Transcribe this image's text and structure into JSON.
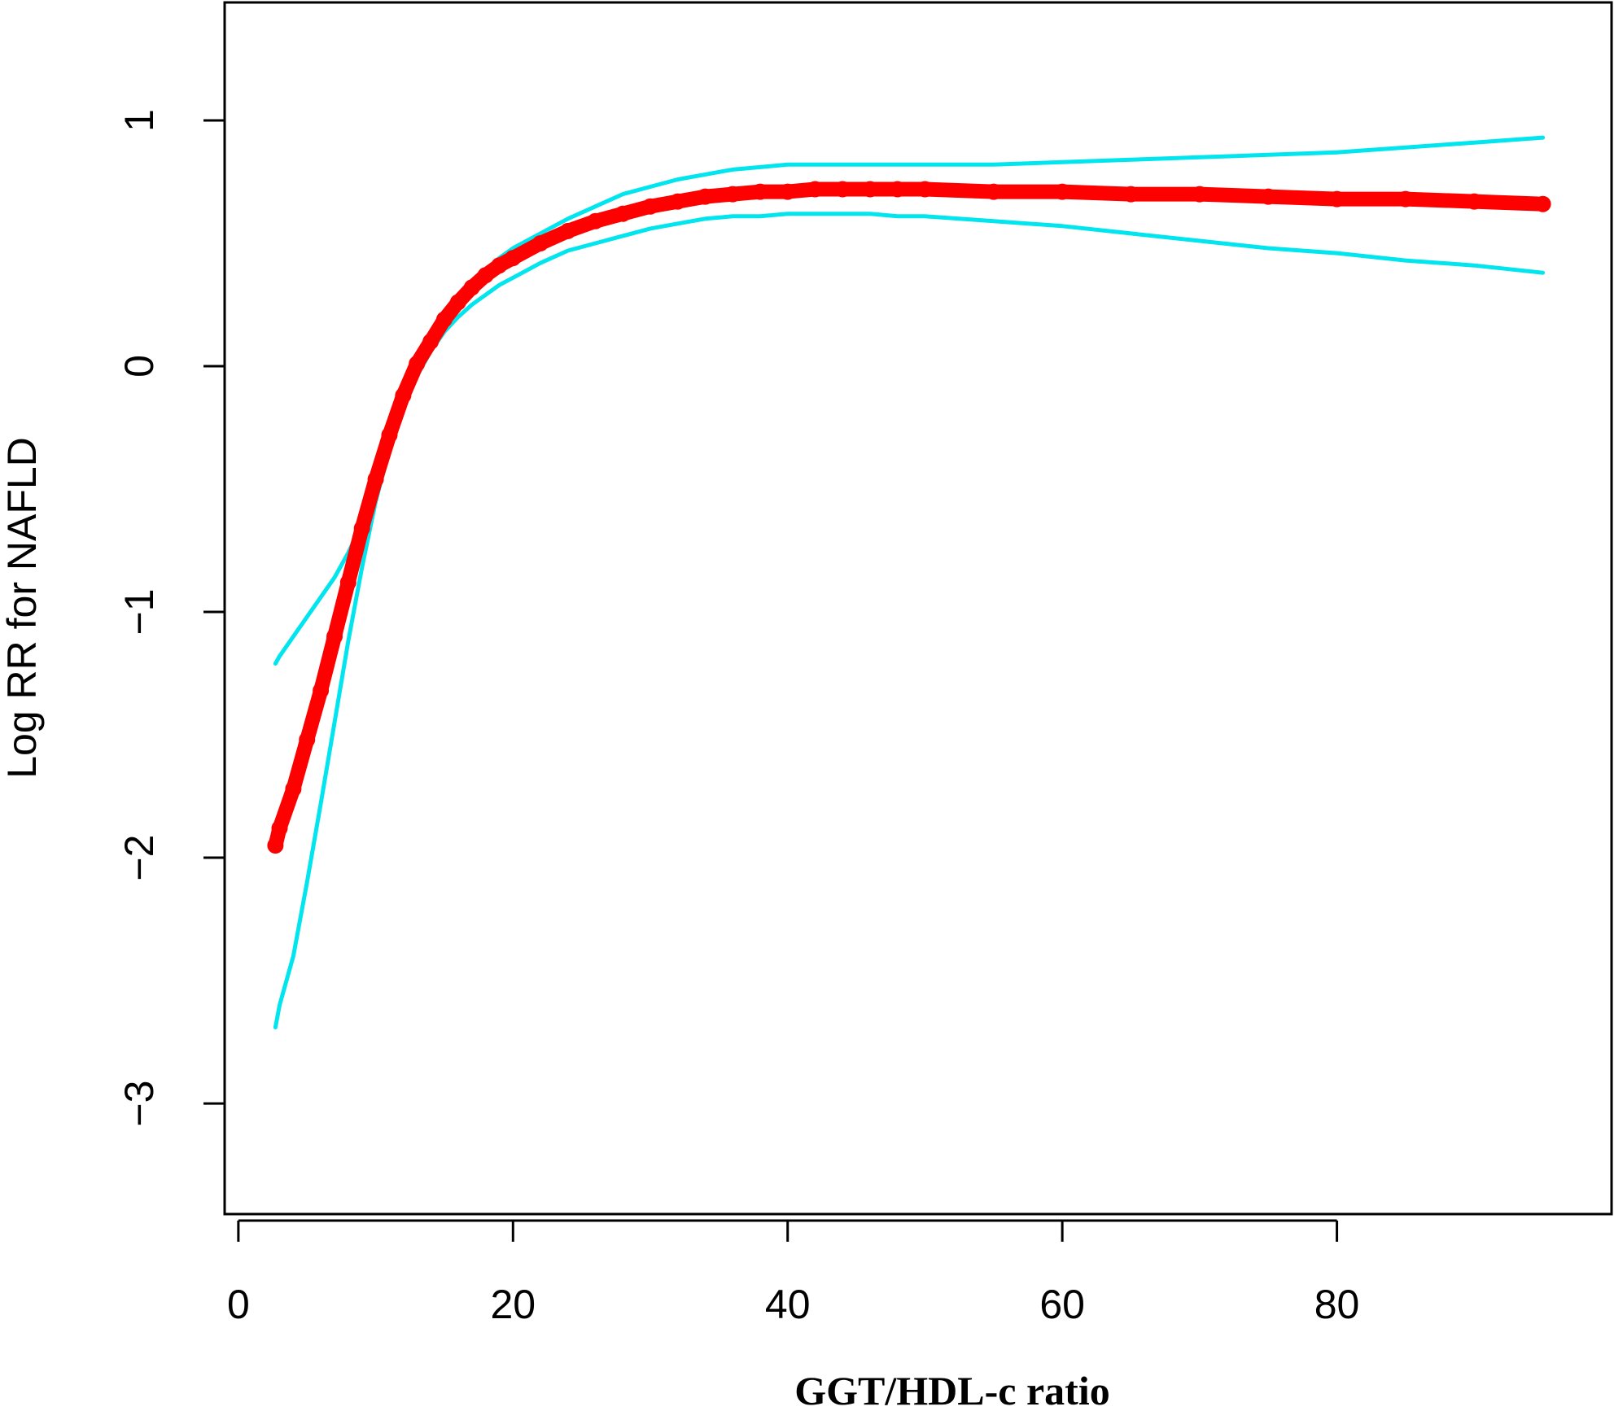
{
  "chart_data": {
    "type": "line",
    "title": "",
    "xlabel": "GGT/HDL-c ratio",
    "ylabel": "Log RR for NAFLD",
    "xlim": [
      -1,
      100
    ],
    "ylim": [
      -3.45,
      1.48
    ],
    "xticks": [
      0,
      20,
      40,
      60,
      80
    ],
    "yticks": [
      -3,
      -2,
      -1,
      0,
      1
    ],
    "grid": false,
    "legend": "none",
    "colors": {
      "estimate": "#ff0000",
      "ci": "#00e5ee",
      "axis": "#000000"
    },
    "series": [
      {
        "role": "estimate",
        "style": "thick-points",
        "x": [
          2.7,
          3,
          4,
          5,
          6,
          7,
          8,
          9,
          10,
          11,
          12,
          13,
          14,
          15,
          16,
          17,
          18,
          19,
          20,
          22,
          24,
          26,
          28,
          30,
          32,
          34,
          36,
          38,
          40,
          42,
          44,
          46,
          48,
          50,
          55,
          60,
          65,
          70,
          75,
          80,
          85,
          90,
          95
        ],
        "y": [
          -1.95,
          -1.88,
          -1.72,
          -1.52,
          -1.32,
          -1.1,
          -0.88,
          -0.66,
          -0.46,
          -0.28,
          -0.12,
          0.01,
          0.1,
          0.19,
          0.26,
          0.32,
          0.37,
          0.41,
          0.44,
          0.5,
          0.55,
          0.59,
          0.62,
          0.65,
          0.67,
          0.69,
          0.7,
          0.71,
          0.71,
          0.72,
          0.72,
          0.72,
          0.72,
          0.72,
          0.71,
          0.71,
          0.7,
          0.7,
          0.69,
          0.68,
          0.68,
          0.67,
          0.66
        ]
      },
      {
        "role": "ci-upper",
        "style": "line",
        "x": [
          2.7,
          3,
          4,
          5,
          6,
          7,
          8,
          9,
          10,
          11,
          12,
          13,
          14,
          15,
          16,
          17,
          18,
          19,
          20,
          22,
          24,
          26,
          28,
          30,
          32,
          34,
          36,
          38,
          40,
          42,
          44,
          46,
          48,
          50,
          55,
          60,
          65,
          70,
          75,
          80,
          85,
          90,
          95
        ],
        "y": [
          -1.21,
          -1.18,
          -1.1,
          -1.02,
          -0.94,
          -0.86,
          -0.76,
          -0.64,
          -0.48,
          -0.3,
          -0.14,
          -0.01,
          0.09,
          0.18,
          0.26,
          0.33,
          0.39,
          0.44,
          0.48,
          0.54,
          0.6,
          0.65,
          0.7,
          0.73,
          0.76,
          0.78,
          0.8,
          0.81,
          0.82,
          0.82,
          0.82,
          0.82,
          0.82,
          0.82,
          0.82,
          0.83,
          0.84,
          0.85,
          0.86,
          0.87,
          0.89,
          0.91,
          0.93
        ]
      },
      {
        "role": "ci-lower",
        "style": "line",
        "x": [
          2.7,
          3,
          4,
          5,
          6,
          7,
          8,
          9,
          10,
          11,
          12,
          13,
          14,
          15,
          16,
          17,
          18,
          19,
          20,
          22,
          24,
          26,
          28,
          30,
          32,
          34,
          36,
          38,
          40,
          42,
          44,
          46,
          48,
          50,
          55,
          60,
          65,
          70,
          75,
          80,
          85,
          90,
          95
        ],
        "y": [
          -2.69,
          -2.6,
          -2.4,
          -2.1,
          -1.78,
          -1.45,
          -1.12,
          -0.82,
          -0.55,
          -0.34,
          -0.17,
          -0.04,
          0.06,
          0.14,
          0.2,
          0.25,
          0.29,
          0.33,
          0.36,
          0.42,
          0.47,
          0.5,
          0.53,
          0.56,
          0.58,
          0.6,
          0.61,
          0.61,
          0.62,
          0.62,
          0.62,
          0.62,
          0.61,
          0.61,
          0.59,
          0.57,
          0.54,
          0.51,
          0.48,
          0.46,
          0.43,
          0.41,
          0.38
        ]
      }
    ]
  }
}
